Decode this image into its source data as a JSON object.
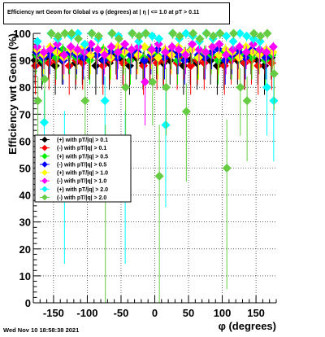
{
  "chart_data": {
    "type": "scatter",
    "title": "Efficiency wrt Geom for Global vs φ (degrees) at |  η | <= 1.0 at pT > 0.11",
    "xlabel": "φ (degrees)",
    "ylabel": "Efficiency wrt Geom (%)",
    "xlim": [
      -180,
      180
    ],
    "ylim": [
      0,
      100
    ],
    "xticks": [
      -150,
      -100,
      -50,
      0,
      50,
      100,
      150
    ],
    "yticks": [
      0,
      10,
      20,
      30,
      40,
      50,
      60,
      70,
      80,
      90,
      100
    ],
    "grid": true,
    "legend_position": "middle-left",
    "series": [
      {
        "name": "(+) with pT/|q| > 0.1",
        "color": "#000000",
        "x": [
          -175,
          -165,
          -155,
          -145,
          -135,
          -125,
          -115,
          -105,
          -95,
          -85,
          -75,
          -65,
          -55,
          -45,
          -35,
          -25,
          -15,
          -5,
          5,
          15,
          25,
          35,
          45,
          55,
          65,
          75,
          85,
          95,
          105,
          115,
          125,
          135,
          145,
          155,
          165,
          175
        ],
        "y": [
          90,
          89,
          91,
          88,
          90,
          92,
          89,
          90,
          91,
          88,
          90,
          89,
          92,
          90,
          88,
          91,
          89,
          90,
          91,
          89,
          90,
          92,
          88,
          90,
          89,
          91,
          90,
          88,
          89,
          91,
          90,
          89,
          92,
          90,
          88,
          91
        ]
      },
      {
        "name": "(-) with pT/|q| > 0.1",
        "color": "#ff0000",
        "x": [
          -175,
          -165,
          -155,
          -145,
          -135,
          -125,
          -115,
          -105,
          -95,
          -85,
          -75,
          -65,
          -55,
          -45,
          -35,
          -25,
          -15,
          -5,
          5,
          15,
          25,
          35,
          45,
          55,
          65,
          75,
          85,
          95,
          105,
          115,
          125,
          135,
          145,
          155,
          165,
          175
        ],
        "y": [
          88,
          91,
          89,
          90,
          92,
          88,
          90,
          89,
          91,
          92,
          88,
          90,
          91,
          89,
          90,
          92,
          88,
          91,
          89,
          90,
          92,
          89,
          91,
          88,
          90,
          89,
          92,
          91,
          88,
          90,
          91,
          89,
          90,
          88,
          92,
          89
        ]
      },
      {
        "name": "(+) with pT/|q| > 0.5",
        "color": "#00ee00",
        "x": [
          -175,
          -165,
          -155,
          -145,
          -135,
          -125,
          -115,
          -105,
          -95,
          -85,
          -75,
          -65,
          -55,
          -45,
          -35,
          -25,
          -15,
          -5,
          5,
          15,
          25,
          35,
          45,
          55,
          65,
          75,
          85,
          95,
          105,
          115,
          125,
          135,
          145,
          155,
          165,
          175
        ],
        "y": [
          92,
          90,
          93,
          91,
          94,
          92,
          91,
          93,
          90,
          92,
          94,
          91,
          93,
          92,
          90,
          93,
          91,
          94,
          92,
          91,
          93,
          90,
          92,
          94,
          91,
          93,
          92,
          90,
          93,
          91,
          94,
          92,
          91,
          93,
          90,
          92
        ]
      },
      {
        "name": "(-) with pT/|q| > 0.5",
        "color": "#0000ff",
        "x": [
          -175,
          -165,
          -155,
          -145,
          -135,
          -125,
          -115,
          -105,
          -95,
          -85,
          -75,
          -65,
          -55,
          -45,
          -35,
          -25,
          -15,
          -5,
          5,
          15,
          25,
          35,
          45,
          55,
          65,
          75,
          85,
          95,
          105,
          115,
          125,
          135,
          145,
          155,
          165,
          175
        ],
        "y": [
          93,
          91,
          92,
          94,
          90,
          93,
          92,
          91,
          94,
          92,
          90,
          93,
          91,
          94,
          92,
          93,
          90,
          92,
          94,
          91,
          93,
          92,
          90,
          94,
          92,
          91,
          93,
          94,
          90,
          92,
          93,
          91,
          94,
          92,
          91,
          93
        ]
      },
      {
        "name": "(+) with pT/|q| > 1.0",
        "color": "#ffff00",
        "x": [
          -175,
          -165,
          -155,
          -145,
          -135,
          -125,
          -115,
          -105,
          -95,
          -85,
          -75,
          -65,
          -55,
          -45,
          -35,
          -25,
          -15,
          -5,
          5,
          15,
          25,
          35,
          45,
          55,
          65,
          75,
          85,
          95,
          105,
          115,
          125,
          135,
          145,
          155,
          165,
          175
        ],
        "y": [
          94,
          92,
          95,
          93,
          91,
          94,
          93,
          95,
          92,
          94,
          93,
          91,
          95,
          93,
          94,
          92,
          95,
          93,
          91,
          94,
          92,
          95,
          93,
          94,
          91,
          93,
          95,
          92,
          94,
          93,
          91,
          95,
          93,
          92,
          94,
          93
        ]
      },
      {
        "name": "(-) with pT/|q| > 1.0",
        "color": "#ff00ff",
        "x": [
          -175,
          -165,
          -155,
          -145,
          -135,
          -125,
          -115,
          -105,
          -95,
          -85,
          -75,
          -65,
          -55,
          -45,
          -35,
          -25,
          -15,
          -5,
          5,
          15,
          25,
          35,
          45,
          55,
          65,
          75,
          85,
          95,
          105,
          115,
          125,
          135,
          145,
          155,
          165,
          175
        ],
        "y": [
          95,
          93,
          94,
          96,
          92,
          95,
          94,
          93,
          96,
          94,
          92,
          95,
          93,
          96,
          94,
          95,
          82,
          94,
          96,
          93,
          95,
          94,
          92,
          96,
          94,
          93,
          95,
          96,
          92,
          94,
          95,
          93,
          96,
          94,
          93,
          95
        ]
      },
      {
        "name": "(+) with pT/|q| > 2.0",
        "color": "#00ffff",
        "x": [
          -175,
          -165,
          -155,
          -145,
          -135,
          -125,
          -115,
          -105,
          -95,
          -85,
          -75,
          -65,
          -55,
          -45,
          -35,
          -25,
          -15,
          -5,
          5,
          15,
          25,
          35,
          45,
          55,
          65,
          75,
          85,
          95,
          105,
          115,
          125,
          135,
          145,
          155,
          165,
          175
        ],
        "y": [
          97,
          67,
          100,
          98,
          55,
          99,
          100,
          96,
          100,
          98,
          75,
          100,
          99,
          55,
          100,
          97,
          100,
          99,
          98,
          66,
          100,
          98,
          100,
          99,
          97,
          100,
          98,
          100,
          99,
          97,
          100,
          99,
          98,
          97,
          80,
          75
        ]
      },
      {
        "name": "(-) with pT/|q| > 2.0",
        "color": "#66cc44",
        "x": [
          -175,
          -165,
          -155,
          -145,
          -135,
          -125,
          -115,
          -105,
          -95,
          -85,
          -75,
          -65,
          -55,
          -45,
          -35,
          -25,
          -15,
          -5,
          5,
          15,
          25,
          35,
          45,
          55,
          65,
          75,
          85,
          95,
          105,
          115,
          125,
          135,
          145,
          155,
          165,
          175
        ],
        "y": [
          75,
          83,
          100,
          99,
          100,
          100,
          98,
          75,
          100,
          99,
          47,
          100,
          98,
          80,
          100,
          99,
          100,
          82,
          47,
          80,
          100,
          99,
          71,
          100,
          98,
          100,
          99,
          100,
          50,
          100,
          80,
          75,
          100,
          99,
          100,
          85
        ]
      }
    ]
  },
  "footer": {
    "timestamp": "Wed Nov 10 18:58:38 2021"
  }
}
